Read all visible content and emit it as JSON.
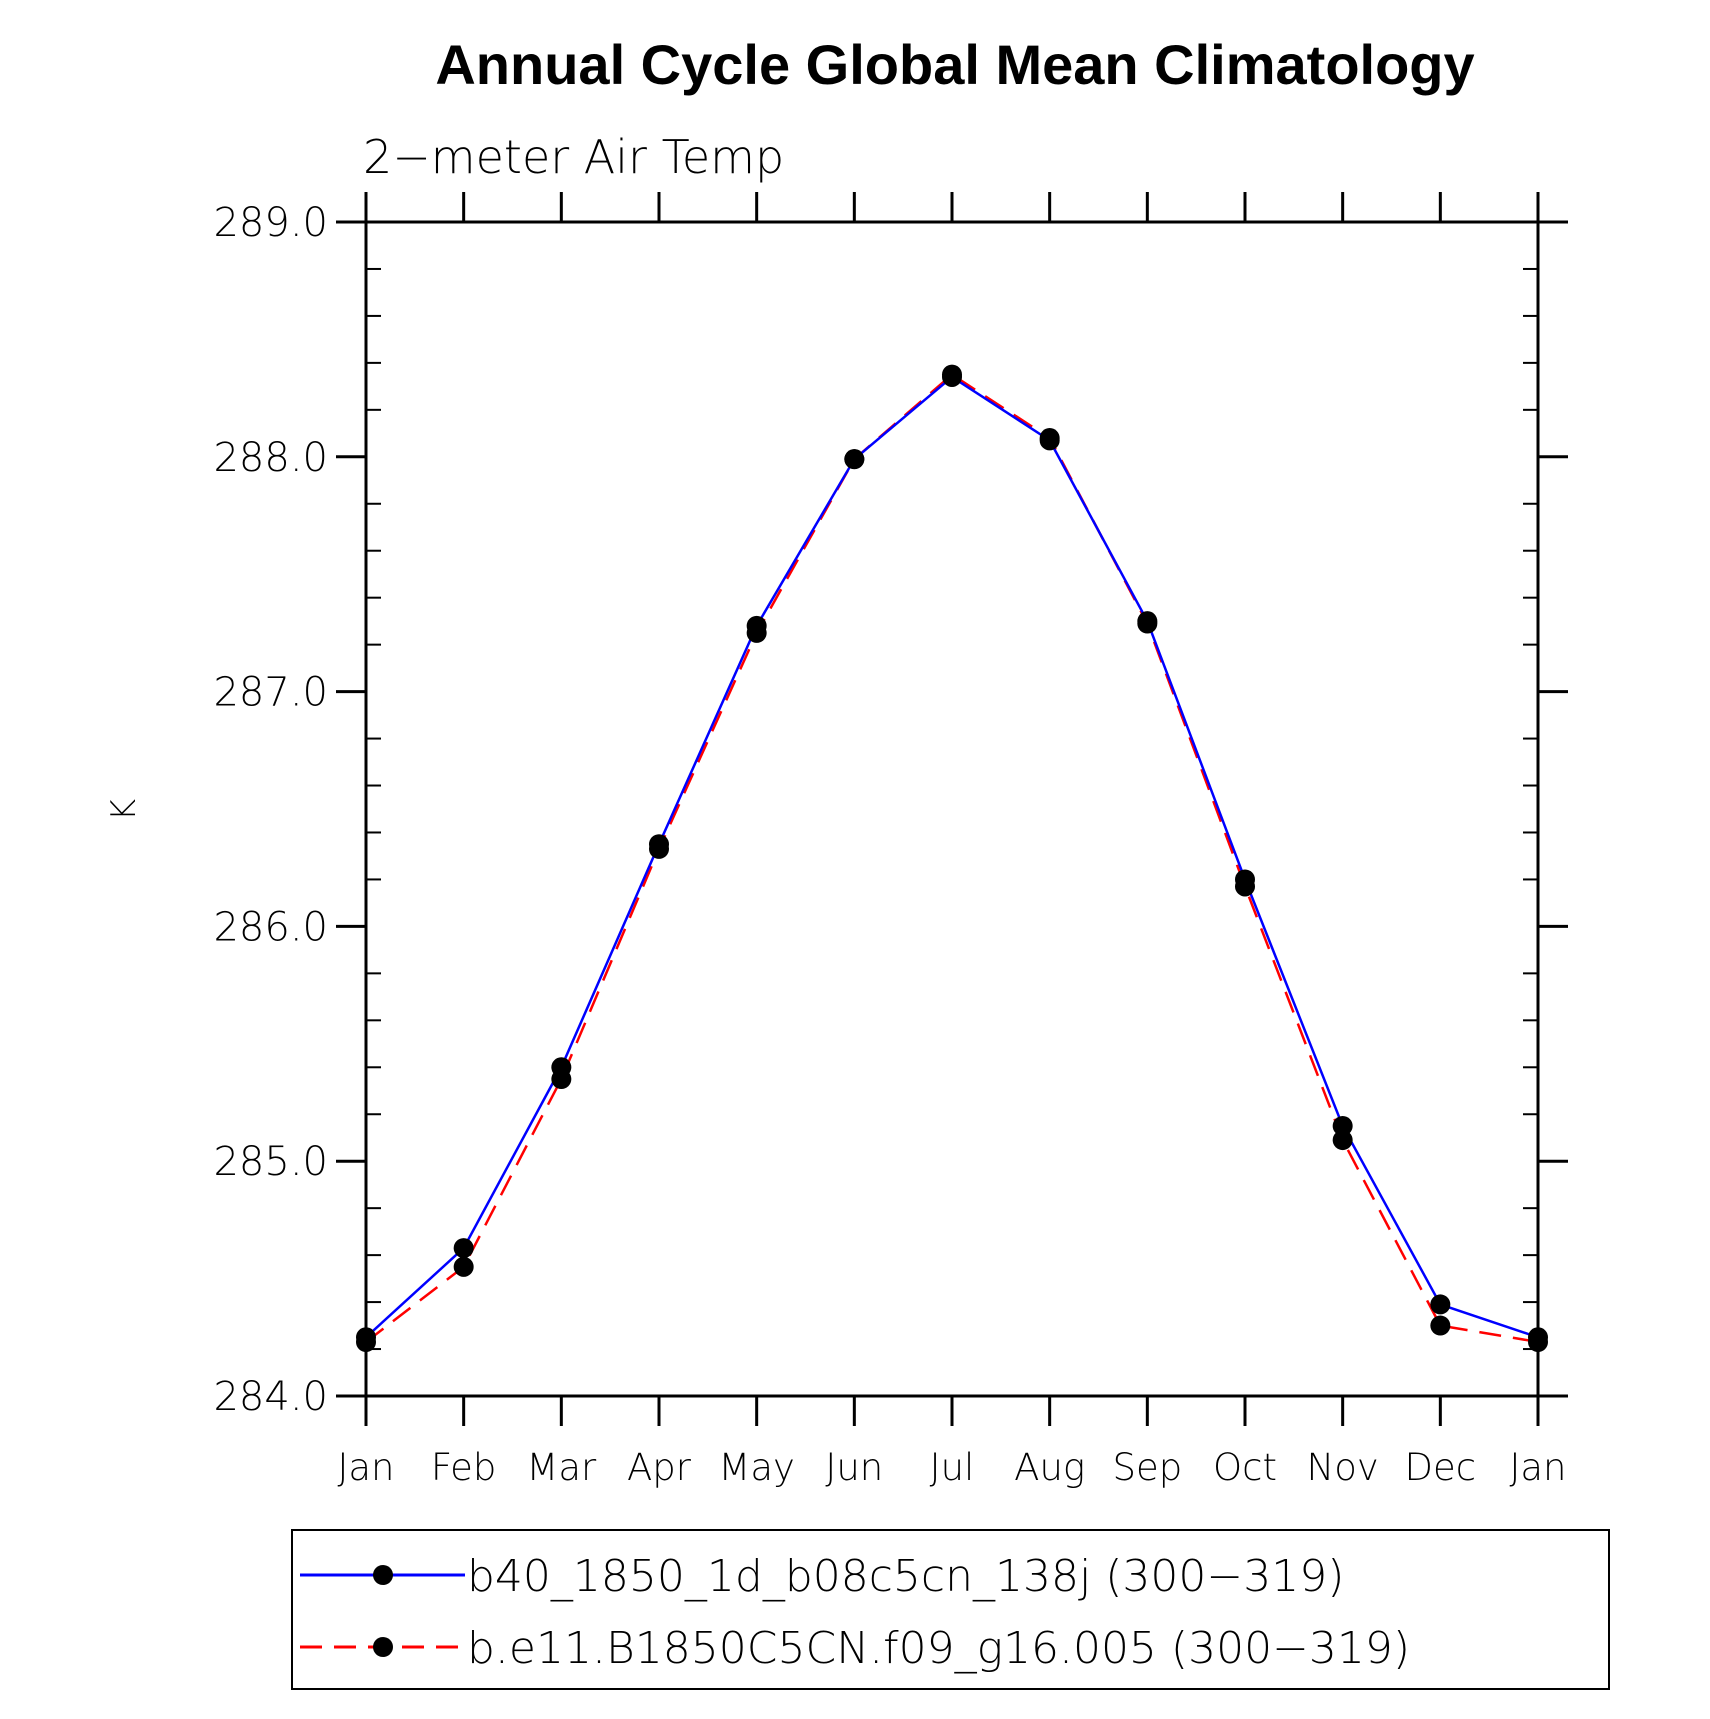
{
  "chart_data": {
    "type": "line",
    "title": "Annual Cycle Global Mean Climatology",
    "subtitle": "2−meter Air Temp",
    "xlabel": "",
    "ylabel": "K",
    "ylim": [
      284.0,
      289.0
    ],
    "yticks": [
      "284.0",
      "285.0",
      "286.0",
      "287.0",
      "288.0",
      "289.0"
    ],
    "categories": [
      "Jan",
      "Feb",
      "Mar",
      "Apr",
      "May",
      "Jun",
      "Jul",
      "Aug",
      "Sep",
      "Oct",
      "Nov",
      "Dec",
      "Jan"
    ],
    "grid": false,
    "legend_position": "bottom",
    "series": [
      {
        "name": "b40_1850_1d_b08c5cn_138j (300−319)",
        "color": "#0000ff",
        "dash": "solid",
        "marker": "circle",
        "values": [
          284.25,
          284.63,
          285.4,
          286.35,
          287.28,
          287.99,
          288.34,
          288.07,
          287.3,
          286.2,
          285.15,
          284.39,
          284.25
        ]
      },
      {
        "name": "b.e11.B1850C5CN.f09_g16.005 (300−319)",
        "color": "#ff0000",
        "dash": "dashed",
        "marker": "circle",
        "values": [
          284.23,
          284.55,
          285.35,
          286.33,
          287.25,
          287.99,
          288.35,
          288.08,
          287.29,
          286.17,
          285.09,
          284.3,
          284.23
        ]
      }
    ]
  }
}
